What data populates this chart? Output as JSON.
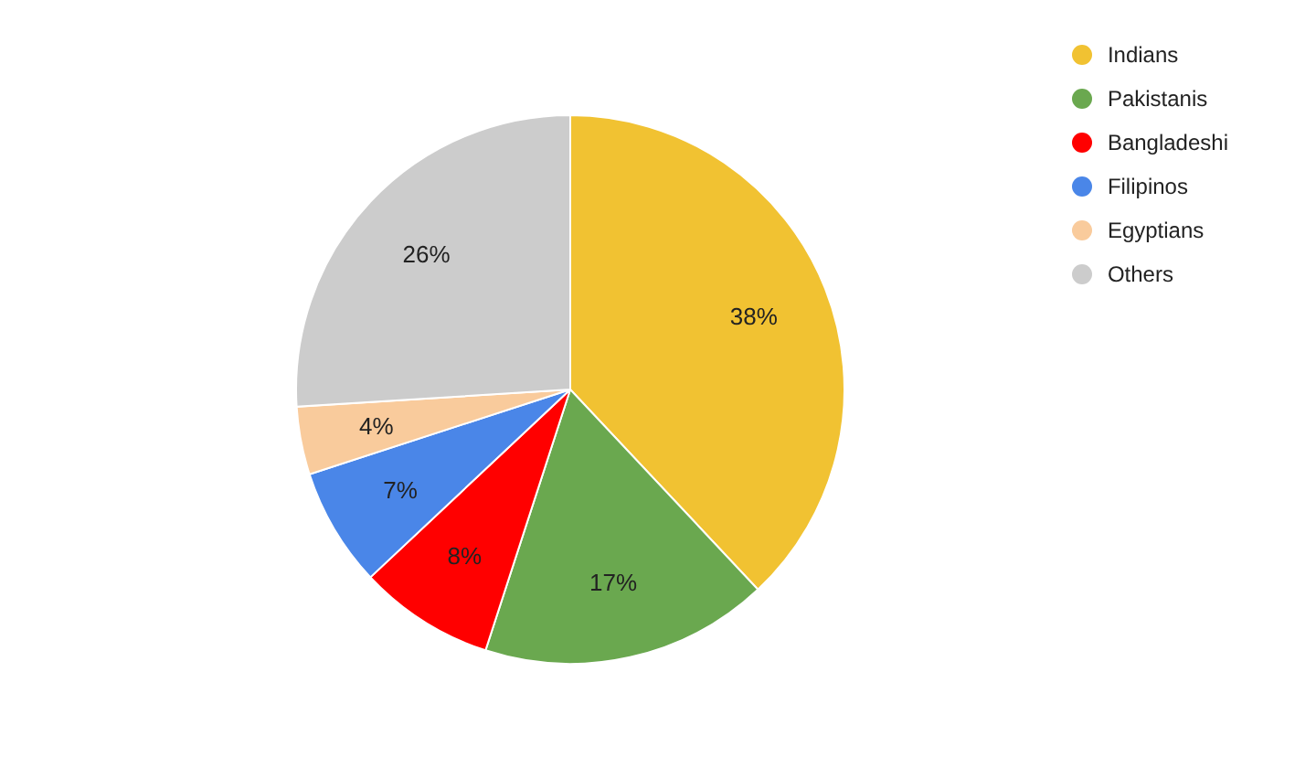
{
  "chart_data": {
    "type": "pie",
    "categories": [
      "Indians",
      "Pakistanis",
      "Bangladeshi",
      "Filipinos",
      "Egyptians",
      "Others"
    ],
    "values": [
      38,
      17,
      8,
      7,
      4,
      26
    ],
    "value_labels": [
      "38%",
      "17%",
      "8%",
      "7%",
      "4%",
      "26%"
    ],
    "colors": [
      "#f1c232",
      "#6aa84f",
      "#ff0000",
      "#4a86e8",
      "#f9cb9c",
      "#cccccc"
    ],
    "legend": "top right"
  }
}
